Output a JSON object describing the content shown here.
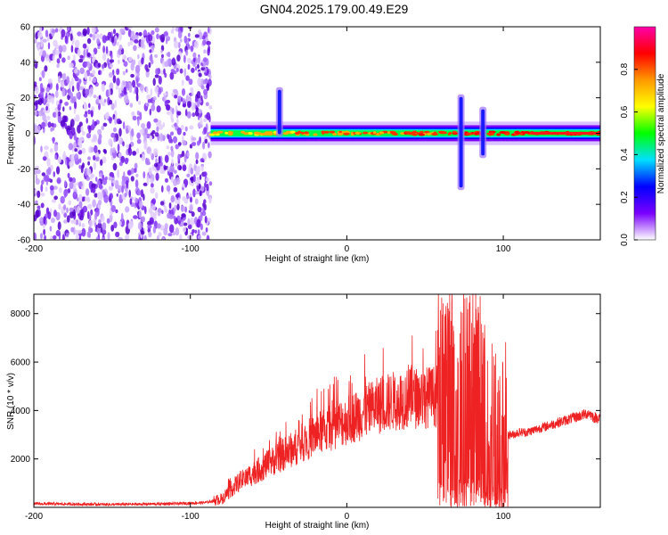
{
  "title": "GN04.2025.179.00.49.E29",
  "chart_data": [
    {
      "type": "heatmap",
      "xlabel": "Height of straight line (km)",
      "ylabel": "Frequency (Hz)",
      "xlim": [
        -200,
        162
      ],
      "ylim": [
        -60,
        60
      ],
      "xticks": [
        -200,
        -100,
        0,
        100
      ],
      "yticks": [
        -60,
        -40,
        -20,
        0,
        20,
        40,
        60
      ],
      "noise_region_x": [
        -200,
        -87
      ],
      "band_center_hz": 0,
      "band_halfwidth_hz": 3,
      "spikes": [
        {
          "x": -43,
          "ymin": -2,
          "ymax": 26
        },
        {
          "x": 73,
          "ymin": -32,
          "ymax": 22
        },
        {
          "x": 87,
          "ymin": -14,
          "ymax": 15
        }
      ],
      "colorbar": {
        "label": "Normalized spectral amplitude",
        "ticks": [
          0.0,
          0.2,
          0.4,
          0.6,
          0.8
        ],
        "range": [
          0,
          1
        ],
        "colors": [
          "#ffffff",
          "#7a00ff",
          "#0000ff",
          "#00e0ff",
          "#00ff00",
          "#ffff00",
          "#ff9900",
          "#ff0000",
          "#ff00aa"
        ]
      }
    },
    {
      "type": "line",
      "xlabel": "Height of straight line (km)",
      "ylabel": "SNR (10 * v/v)",
      "xlim": [
        -200,
        162
      ],
      "ylim": [
        0,
        8800
      ],
      "xticks": [
        -200,
        -100,
        0,
        100
      ],
      "yticks": [
        2000,
        4000,
        6000,
        8000
      ],
      "color": "#ee2222",
      "series": [
        {
          "x": [
            -200,
            -150,
            -110,
            -90,
            -80,
            -70,
            -60,
            -50,
            -40,
            -30,
            -20,
            -10,
            0,
            10,
            20,
            30,
            40,
            50,
            58,
            62,
            66,
            70,
            74,
            78,
            82,
            86,
            90,
            94,
            98,
            102,
            106,
            110,
            115,
            120,
            125,
            130,
            135,
            140,
            145,
            150,
            155,
            158,
            162
          ],
          "values": [
            150,
            120,
            150,
            200,
            350,
            1000,
            1400,
            1800,
            2200,
            2600,
            3000,
            3300,
            3600,
            3900,
            4200,
            4400,
            4500,
            4550,
            4600,
            4700,
            4900,
            4600,
            4800,
            4800,
            5200,
            4400,
            3000,
            3300,
            2900,
            3000,
            3000,
            3100,
            3100,
            3200,
            3300,
            3400,
            3500,
            3600,
            3700,
            3800,
            3900,
            3700,
            3700
          ]
        }
      ]
    }
  ]
}
